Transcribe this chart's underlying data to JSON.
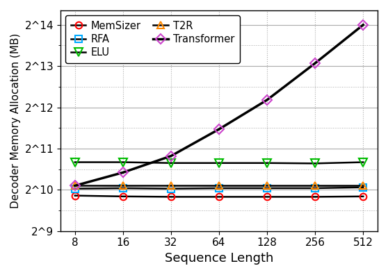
{
  "x": [
    8,
    16,
    32,
    64,
    128,
    256,
    512
  ],
  "x_log2": [
    3,
    4,
    5,
    6,
    7,
    8,
    9
  ],
  "series": {
    "MemSizer": {
      "values_log2": [
        9.86,
        9.84,
        9.83,
        9.83,
        9.83,
        9.83,
        9.84
      ],
      "color": "#ff0000",
      "marker": "o",
      "markersize": 7,
      "linewidth": 1.8,
      "markerfacecolor": "none",
      "markeredgewidth": 1.5,
      "linestyle": "-",
      "line_color": "#000000",
      "zorder": 3
    },
    "ELU": {
      "values_log2": [
        10.67,
        10.67,
        10.65,
        10.65,
        10.65,
        10.64,
        10.67
      ],
      "color": "#00bb00",
      "marker": "v",
      "markersize": 8,
      "linewidth": 1.8,
      "markerfacecolor": "none",
      "markeredgewidth": 1.5,
      "linestyle": "-",
      "line_color": "#000000",
      "zorder": 3
    },
    "Transformer": {
      "values_log2": [
        10.1,
        10.42,
        10.82,
        11.47,
        12.18,
        13.07,
        14.0
      ],
      "color": "#cc44cc",
      "marker": "D",
      "markersize": 7,
      "linewidth": 2.5,
      "markerfacecolor": "none",
      "markeredgewidth": 1.5,
      "linestyle": "-",
      "line_color": "#000000",
      "zorder": 4
    },
    "RFA": {
      "values_log2": [
        10.03,
        10.04,
        10.03,
        10.04,
        10.04,
        10.04,
        10.06
      ],
      "color": "#00aaff",
      "marker": "s",
      "markersize": 7,
      "linewidth": 1.8,
      "markerfacecolor": "none",
      "markeredgewidth": 1.5,
      "linestyle": "-",
      "line_color": "#000000",
      "zorder": 3
    },
    "T2R": {
      "values_log2": [
        10.1,
        10.1,
        10.1,
        10.1,
        10.1,
        10.1,
        10.1
      ],
      "color": "#ff8800",
      "marker": "^",
      "markersize": 7,
      "linewidth": 1.8,
      "markerfacecolor": "none",
      "markeredgewidth": 1.5,
      "linestyle": "-",
      "line_color": "#000000",
      "zorder": 3
    }
  },
  "xlabel": "Sequence Length",
  "ylabel": "Decoder Memory Allocation (MB)",
  "yticks_log2": [
    9,
    10,
    11,
    12,
    13,
    14
  ],
  "ytick_labels": [
    "2^9",
    "2^10",
    "2^11",
    "2^12",
    "2^13",
    "2^14"
  ],
  "xtick_labels": [
    "8",
    "16",
    "32",
    "64",
    "128",
    "256",
    "512"
  ],
  "ylim_log2": [
    9.35,
    14.35
  ],
  "xlim": [
    2.7,
    9.3
  ],
  "figsize": [
    5.58,
    3.96
  ],
  "dpi": 100,
  "background_color": "#ffffff",
  "major_grid_color": "#aaaaaa",
  "minor_grid_color": "#aaaaaa",
  "tick_fontsize": 11,
  "label_fontsize": 13,
  "ylabel_fontsize": 11
}
